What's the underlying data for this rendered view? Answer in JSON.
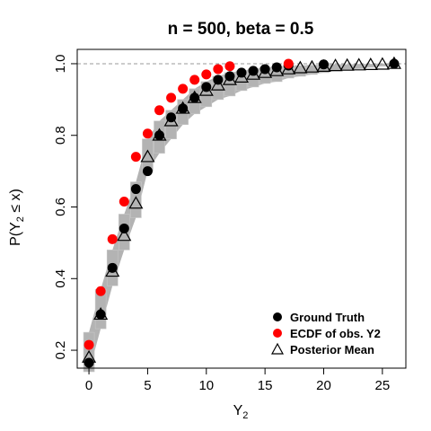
{
  "chart_data": {
    "type": "scatter",
    "title": "n = 500, beta = 0.5",
    "xlabel": "Y",
    "xlabel_sub": "2",
    "ylabel_parts": {
      "p": "P(Y",
      "sub": "2",
      "rest": " ≤ x)"
    },
    "xlim": [
      -1,
      27
    ],
    "ylim": [
      0.15,
      1.04
    ],
    "xticks": [
      0,
      5,
      10,
      15,
      20,
      25
    ],
    "yticks": [
      0.2,
      0.4,
      0.6,
      0.8,
      1.0
    ],
    "ytick_labels": [
      "0.2",
      "0.4",
      "0.6",
      "0.8",
      "1.0"
    ],
    "reference_line_y": 1.0,
    "grid": false,
    "legend_position": "bottom-right",
    "x": [
      0,
      1,
      2,
      3,
      4,
      5,
      6,
      7,
      8,
      9,
      10,
      11,
      12,
      13,
      14,
      15,
      16,
      17,
      18,
      19,
      20,
      21,
      22,
      23,
      24,
      25,
      26
    ],
    "series": [
      {
        "name": "Ground Truth",
        "color": "#000000",
        "marker": "filled-circle",
        "x": [
          0,
          1,
          2,
          3,
          4,
          5,
          6,
          7,
          8,
          9,
          10,
          11,
          12,
          13,
          14,
          15,
          16,
          17,
          20,
          26
        ],
        "values": [
          0.165,
          0.3,
          0.43,
          0.54,
          0.65,
          0.7,
          0.8,
          0.85,
          0.875,
          0.905,
          0.935,
          0.955,
          0.965,
          0.975,
          0.98,
          0.985,
          0.99,
          0.995,
          0.998,
          1.0
        ]
      },
      {
        "name": "ECDF of obs. Y2",
        "color": "#ff0000",
        "marker": "filled-circle",
        "x": [
          0,
          1,
          2,
          3,
          4,
          5,
          6,
          7,
          8,
          9,
          10,
          11,
          12,
          17
        ],
        "values": [
          0.215,
          0.365,
          0.51,
          0.615,
          0.74,
          0.805,
          0.87,
          0.905,
          0.93,
          0.955,
          0.97,
          0.985,
          0.993,
          1.0
        ]
      },
      {
        "name": "Posterior Mean",
        "color": "#000000",
        "marker": "open-triangle",
        "x": [
          0,
          1,
          2,
          3,
          4,
          5,
          6,
          7,
          8,
          9,
          10,
          11,
          12,
          13,
          14,
          15,
          16,
          17,
          18,
          19,
          20,
          21,
          22,
          23,
          24,
          25,
          26
        ],
        "values": [
          0.18,
          0.3,
          0.42,
          0.52,
          0.61,
          0.74,
          0.8,
          0.84,
          0.875,
          0.905,
          0.925,
          0.94,
          0.955,
          0.962,
          0.97,
          0.975,
          0.98,
          0.985,
          0.988,
          0.99,
          0.992,
          0.994,
          0.995,
          0.996,
          0.997,
          0.998,
          1.0
        ]
      }
    ],
    "posterior_band": {
      "color": "#b3b3b3",
      "x": [
        0,
        1,
        2,
        3,
        4,
        5,
        6,
        7,
        8,
        9,
        10,
        11,
        12,
        13,
        14,
        15,
        16,
        17,
        18,
        19,
        20,
        21,
        22,
        23,
        24,
        25,
        26
      ],
      "low": [
        0.14,
        0.26,
        0.38,
        0.48,
        0.57,
        0.7,
        0.75,
        0.79,
        0.83,
        0.86,
        0.88,
        0.9,
        0.91,
        0.925,
        0.935,
        0.945,
        0.95,
        0.96,
        0.965,
        0.97,
        0.975,
        0.98,
        0.983,
        0.986,
        0.99,
        0.993,
        0.997
      ],
      "high": [
        0.25,
        0.37,
        0.48,
        0.58,
        0.67,
        0.79,
        0.84,
        0.87,
        0.9,
        0.93,
        0.95,
        0.965,
        0.975,
        0.98,
        0.985,
        0.99,
        0.992,
        0.994,
        0.995,
        0.996,
        0.997,
        0.998,
        0.998,
        0.999,
        0.999,
        1.0,
        1.0
      ]
    }
  }
}
